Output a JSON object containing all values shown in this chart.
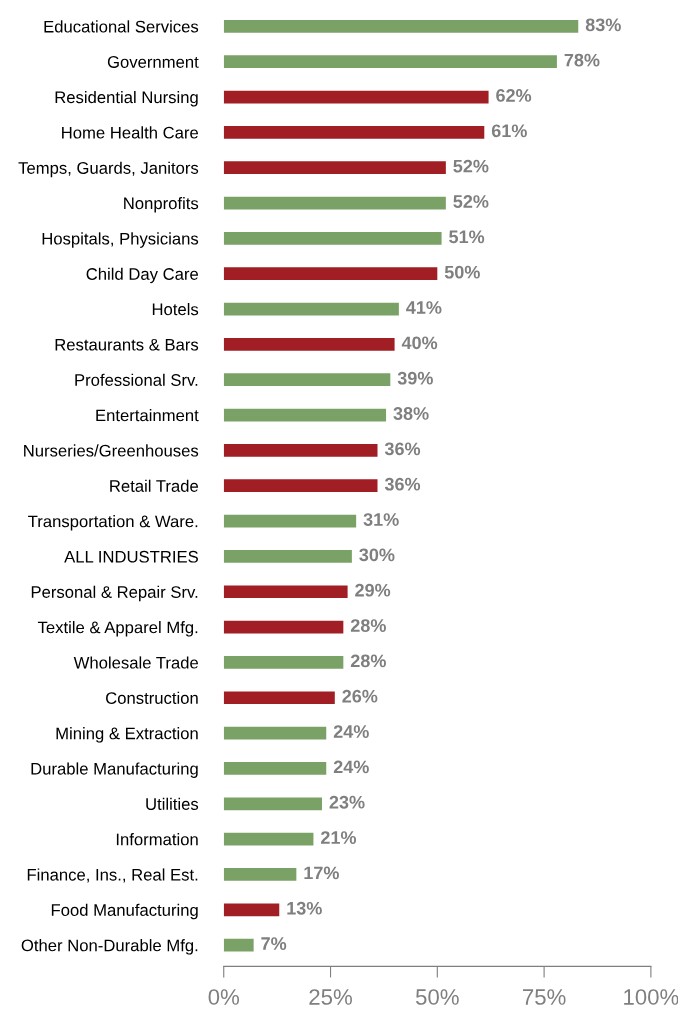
{
  "chart_data": {
    "type": "bar",
    "orientation": "horizontal",
    "categories": [
      "Educational Services",
      "Government",
      "Residential Nursing",
      "Home Health Care",
      "Temps, Guards, Janitors",
      "Nonprofits",
      "Hospitals, Physicians",
      "Child Day Care",
      "Hotels",
      "Restaurants & Bars",
      "Professional Srv.",
      "Entertainment",
      "Nurseries/Greenhouses",
      "Retail Trade",
      "Transportation & Ware.",
      "ALL INDUSTRIES",
      "Personal & Repair Srv.",
      "Textile & Apparel Mfg.",
      "Wholesale Trade",
      "Construction",
      "Mining & Extraction",
      "Durable Manufacturing",
      "Utilities",
      "Information",
      "Finance, Ins., Real Est.",
      "Food Manufacturing",
      "Other Non-Durable Mfg."
    ],
    "values": [
      83,
      78,
      62,
      61,
      52,
      52,
      51,
      50,
      41,
      40,
      39,
      38,
      36,
      36,
      31,
      30,
      29,
      28,
      28,
      26,
      24,
      24,
      23,
      21,
      17,
      13,
      7
    ],
    "colors": [
      "#7ba266",
      "#7ba266",
      "#a11f24",
      "#a11f24",
      "#a11f24",
      "#7ba266",
      "#7ba266",
      "#a11f24",
      "#7ba266",
      "#a11f24",
      "#7ba266",
      "#7ba266",
      "#a11f24",
      "#a11f24",
      "#7ba266",
      "#7ba266",
      "#a11f24",
      "#a11f24",
      "#7ba266",
      "#a11f24",
      "#7ba266",
      "#7ba266",
      "#7ba266",
      "#7ba266",
      "#7ba266",
      "#a11f24",
      "#7ba266"
    ],
    "value_labels": [
      "83%",
      "78%",
      "62%",
      "61%",
      "52%",
      "52%",
      "51%",
      "50%",
      "41%",
      "40%",
      "39%",
      "38%",
      "36%",
      "36%",
      "31%",
      "30%",
      "29%",
      "28%",
      "28%",
      "26%",
      "24%",
      "24%",
      "23%",
      "21%",
      "17%",
      "13%",
      "7%"
    ],
    "xlim": [
      0,
      100
    ],
    "xticks": [
      {
        "value": 0,
        "label": "0%"
      },
      {
        "value": 25,
        "label": "25%"
      },
      {
        "value": 50,
        "label": "50%"
      },
      {
        "value": 75,
        "label": "75%"
      },
      {
        "value": 100,
        "label": "100%"
      }
    ],
    "grid": false,
    "legend": false
  }
}
